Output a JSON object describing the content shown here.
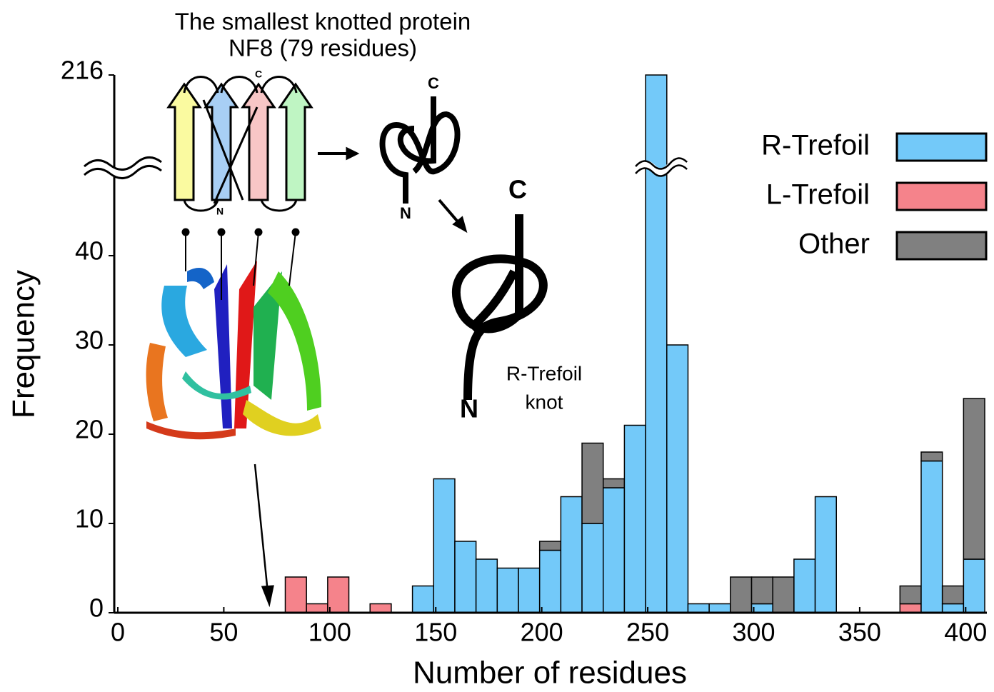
{
  "chart_data": {
    "type": "histogram",
    "stacked": true,
    "x_label": "Number of residues",
    "y_label": "Frequency",
    "bins": [
      79,
      89,
      99,
      109,
      119,
      129,
      139,
      149,
      159,
      169,
      179,
      189,
      199,
      209,
      219,
      229,
      239,
      249,
      259,
      269,
      279,
      289,
      299,
      309,
      319,
      329,
      339,
      349,
      359,
      369,
      379,
      389,
      399,
      409
    ],
    "series": [
      {
        "name": "R-Trefoil",
        "color": "#73c9f9",
        "values": [
          0,
          0,
          0,
          0,
          0,
          0,
          3,
          15,
          8,
          6,
          5,
          5,
          7,
          13,
          10,
          14,
          21,
          216,
          30,
          1,
          1,
          0,
          1,
          0,
          6,
          13,
          0,
          0,
          0,
          0,
          17,
          1,
          6
        ]
      },
      {
        "name": "L-Trefoil",
        "color": "#f5838b",
        "values": [
          4,
          1,
          4,
          0,
          1,
          0,
          0,
          0,
          0,
          0,
          0,
          0,
          0,
          0,
          0,
          0,
          0,
          0,
          0,
          0,
          0,
          0,
          0,
          0,
          0,
          0,
          0,
          0,
          0,
          1,
          0,
          0,
          0
        ]
      },
      {
        "name": "Other",
        "color": "#808080",
        "values": [
          0,
          0,
          0,
          0,
          0,
          0,
          0,
          0,
          0,
          0,
          0,
          0,
          1,
          0,
          9,
          1,
          0,
          0,
          0,
          0,
          0,
          4,
          3,
          4,
          0,
          0,
          0,
          0,
          0,
          2,
          1,
          2,
          18
        ]
      }
    ],
    "xlim": [
      0,
      410
    ],
    "xticks": [
      0,
      50,
      100,
      150,
      200,
      250,
      300,
      350,
      400
    ],
    "ylim": [
      0,
      216
    ],
    "yticks": [
      0,
      10,
      20,
      30,
      40,
      216
    ],
    "y_break": 50,
    "legend": "upper right",
    "annotations": [
      "The smallest knotted protein",
      "NF8 (79 residues)",
      "R-Trefoil",
      "knot"
    ],
    "diagram_labels": [
      "C",
      "N",
      "C",
      "N",
      "C",
      "N"
    ]
  }
}
